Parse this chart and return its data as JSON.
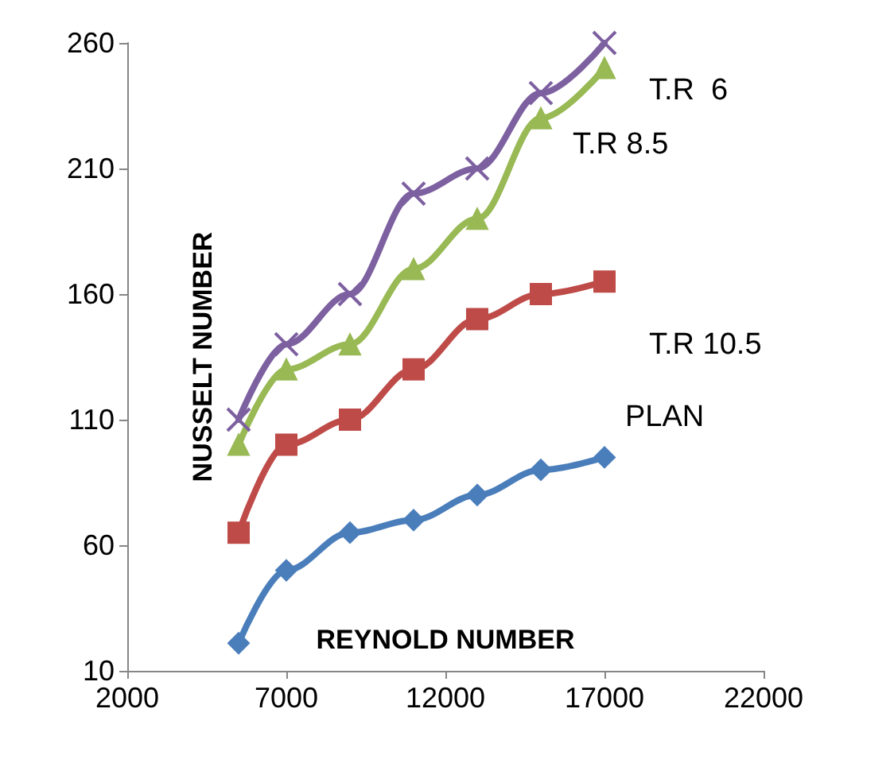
{
  "chart_data": {
    "type": "line",
    "xlabel": "REYNOLD NUMBER",
    "ylabel": "NUSSELT NUMBER",
    "xlim": [
      2000,
      22000
    ],
    "xticks": [
      2000,
      7000,
      12000,
      17000,
      22000
    ],
    "ylim": [
      10,
      260
    ],
    "yticks": [
      10,
      60,
      110,
      160,
      210,
      260
    ],
    "grid": false,
    "legend": false,
    "line_style": "solid",
    "series": [
      {
        "name": "T.R  6",
        "color": "#7d60a0",
        "marker": "cross",
        "x": [
          5500,
          7000,
          9000,
          11000,
          13000,
          15000,
          17000
        ],
        "values": [
          110,
          140,
          160,
          200,
          210,
          240,
          260
        ]
      },
      {
        "name": "T.R 8.5",
        "color": "#98b954",
        "marker": "triangle",
        "x": [
          5500,
          7000,
          9000,
          11000,
          13000,
          15000,
          17000
        ],
        "values": [
          100,
          130,
          140,
          170,
          190,
          230,
          250
        ]
      },
      {
        "name": "T.R 10.5",
        "color": "#be4b48",
        "marker": "square",
        "x": [
          5500,
          7000,
          9000,
          11000,
          13000,
          15000,
          17000
        ],
        "values": [
          65,
          100,
          110,
          130,
          150,
          160,
          165
        ]
      },
      {
        "name": "PLAN",
        "color": "#4a7ebb",
        "marker": "diamond",
        "x": [
          5500,
          7000,
          9000,
          11000,
          13000,
          15000,
          17000
        ],
        "values": [
          21,
          50,
          65,
          70,
          80,
          90,
          95
        ]
      }
    ]
  }
}
